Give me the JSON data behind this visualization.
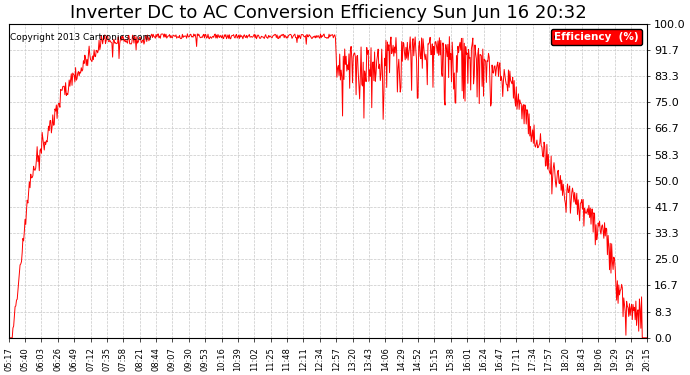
{
  "title": "Inverter DC to AC Conversion Efficiency Sun Jun 16 20:32",
  "copyright": "Copyright 2013 Cartronics.com",
  "ylim": [
    0.0,
    100.0
  ],
  "yticks": [
    0.0,
    8.3,
    16.7,
    25.0,
    33.3,
    41.7,
    50.0,
    58.3,
    66.7,
    75.0,
    83.3,
    91.7,
    100.0
  ],
  "line_color": "#ff0000",
  "background_color": "#ffffff",
  "grid_color": "#c8c8c8",
  "title_fontsize": 13,
  "legend_label": "Efficiency  (%)",
  "legend_bg": "#ff0000",
  "legend_fg": "#ffffff",
  "xtick_labels": [
    "05:17",
    "05:40",
    "06:03",
    "06:26",
    "06:49",
    "07:12",
    "07:35",
    "07:58",
    "08:21",
    "08:44",
    "09:07",
    "09:30",
    "09:53",
    "10:16",
    "10:39",
    "11:02",
    "11:25",
    "11:48",
    "12:11",
    "12:34",
    "12:57",
    "13:20",
    "13:43",
    "14:06",
    "14:29",
    "14:52",
    "15:15",
    "15:38",
    "16:01",
    "16:24",
    "16:47",
    "17:11",
    "17:34",
    "17:57",
    "18:20",
    "18:43",
    "19:06",
    "19:29",
    "19:52",
    "20:15"
  ]
}
